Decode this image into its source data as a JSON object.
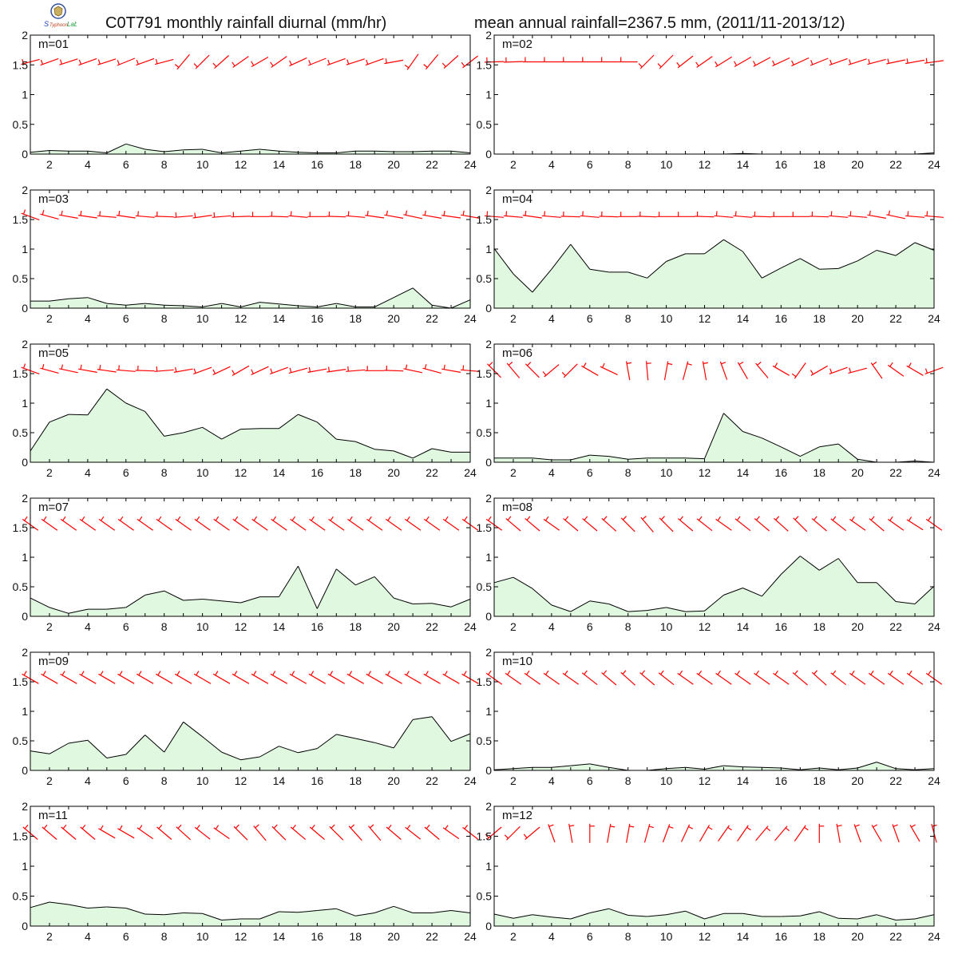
{
  "header": {
    "title_left": "C0T791 monthly rainfall diurnal (mm/hr)",
    "title_right": "mean annual rainfall=2367.5 mm, (2011/11-2013/12)",
    "logo_text": "Lab"
  },
  "colors": {
    "fill": "#e0f8e0",
    "line": "#000000",
    "barb": "#ff0000",
    "axis": "#000000"
  },
  "chart_data": [
    {
      "type": "area",
      "label": "m=01",
      "x": [
        1,
        2,
        3,
        4,
        5,
        6,
        7,
        8,
        9,
        10,
        11,
        12,
        13,
        14,
        15,
        16,
        17,
        18,
        19,
        20,
        21,
        22,
        23,
        24
      ],
      "values": [
        0.03,
        0.06,
        0.05,
        0.05,
        0.02,
        0.17,
        0.08,
        0.04,
        0.07,
        0.08,
        0.02,
        0.05,
        0.08,
        0.05,
        0.03,
        0.02,
        0.02,
        0.05,
        0.05,
        0.04,
        0.04,
        0.05,
        0.05,
        0.02
      ],
      "wind_dir": [
        255,
        250,
        252,
        250,
        252,
        248,
        250,
        255,
        220,
        225,
        228,
        235,
        240,
        235,
        245,
        248,
        250,
        252,
        250,
        260,
        215,
        220,
        228,
        232
      ],
      "ylim": [
        0,
        2
      ],
      "xlim": [
        1,
        24
      ]
    },
    {
      "type": "area",
      "label": "m=02",
      "x": [
        1,
        2,
        3,
        4,
        5,
        6,
        7,
        8,
        9,
        10,
        11,
        12,
        13,
        14,
        15,
        16,
        17,
        18,
        19,
        20,
        21,
        22,
        23,
        24
      ],
      "values": [
        0,
        0,
        0,
        0,
        0,
        0,
        0,
        0,
        0,
        0,
        0,
        0,
        0,
        0.01,
        0,
        0,
        0,
        0,
        0,
        0,
        0,
        0,
        0,
        0.02
      ],
      "wind_dir": [
        268,
        268,
        270,
        270,
        270,
        270,
        270,
        270,
        225,
        225,
        232,
        235,
        238,
        240,
        242,
        245,
        245,
        248,
        250,
        252,
        255,
        258,
        260,
        262
      ],
      "ylim": [
        0,
        2
      ],
      "xlim": [
        1,
        24
      ]
    },
    {
      "type": "area",
      "label": "m=03",
      "x": [
        1,
        2,
        3,
        4,
        5,
        6,
        7,
        8,
        9,
        10,
        11,
        12,
        13,
        14,
        15,
        16,
        17,
        18,
        19,
        20,
        21,
        22,
        23,
        24
      ],
      "values": [
        0.12,
        0.12,
        0.16,
        0.18,
        0.08,
        0.05,
        0.08,
        0.05,
        0.04,
        0.02,
        0.08,
        0.02,
        0.1,
        0.07,
        0.04,
        0.02,
        0.08,
        0.02,
        0.02,
        0.18,
        0.34,
        0.05,
        0.0,
        0.14
      ],
      "wind_dir": [
        290,
        285,
        280,
        278,
        275,
        278,
        275,
        272,
        265,
        262,
        265,
        268,
        270,
        272,
        275,
        270,
        272,
        275,
        278,
        280,
        282,
        280,
        278,
        280
      ],
      "ylim": [
        0,
        2
      ],
      "xlim": [
        1,
        24
      ]
    },
    {
      "type": "area",
      "label": "m=04",
      "x": [
        1,
        2,
        3,
        4,
        5,
        6,
        7,
        8,
        9,
        10,
        11,
        12,
        13,
        14,
        15,
        16,
        17,
        18,
        19,
        20,
        21,
        22,
        23,
        24
      ],
      "values": [
        1.01,
        0.58,
        0.27,
        0.66,
        1.08,
        0.66,
        0.61,
        0.61,
        0.51,
        0.79,
        0.92,
        0.92,
        1.16,
        0.96,
        0.51,
        0.68,
        0.84,
        0.66,
        0.67,
        0.8,
        0.98,
        0.89,
        1.11,
        0.98
      ],
      "wind_dir": [
        275,
        275,
        278,
        275,
        272,
        275,
        272,
        270,
        272,
        270,
        270,
        272,
        275,
        275,
        272,
        270,
        270,
        272,
        275,
        275,
        280,
        282,
        275,
        275
      ],
      "ylim": [
        0,
        2
      ],
      "xlim": [
        1,
        24
      ]
    },
    {
      "type": "area",
      "label": "m=05",
      "x": [
        1,
        2,
        3,
        4,
        5,
        6,
        7,
        8,
        9,
        10,
        11,
        12,
        13,
        14,
        15,
        16,
        17,
        18,
        19,
        20,
        21,
        22,
        23,
        24
      ],
      "values": [
        0.19,
        0.68,
        0.81,
        0.8,
        1.24,
        1.0,
        0.86,
        0.44,
        0.5,
        0.59,
        0.39,
        0.56,
        0.57,
        0.57,
        0.81,
        0.68,
        0.39,
        0.35,
        0.22,
        0.19,
        0.07,
        0.23,
        0.17,
        0.17
      ],
      "wind_dir": [
        290,
        285,
        282,
        280,
        278,
        275,
        272,
        265,
        260,
        250,
        245,
        240,
        245,
        250,
        255,
        260,
        262,
        265,
        270,
        272,
        282,
        285,
        280,
        275
      ],
      "ylim": [
        0,
        2
      ],
      "xlim": [
        1,
        24
      ]
    },
    {
      "type": "area",
      "label": "m=06",
      "x": [
        1,
        2,
        3,
        4,
        5,
        6,
        7,
        8,
        9,
        10,
        11,
        12,
        13,
        14,
        15,
        16,
        17,
        18,
        19,
        20,
        21,
        22,
        23,
        24
      ],
      "values": [
        0.07,
        0.07,
        0.07,
        0.04,
        0.04,
        0.12,
        0.1,
        0.05,
        0.07,
        0.07,
        0.07,
        0.06,
        0.83,
        0.52,
        0.41,
        0.26,
        0.1,
        0.26,
        0.31,
        0.05,
        0.0,
        0.0,
        0.02,
        0.0
      ],
      "wind_dir": [
        315,
        320,
        315,
        230,
        225,
        300,
        295,
        350,
        355,
        10,
        15,
        350,
        340,
        330,
        320,
        300,
        215,
        240,
        250,
        255,
        325,
        305,
        300,
        250
      ],
      "ylim": [
        0,
        2
      ],
      "xlim": [
        1,
        24
      ]
    },
    {
      "type": "area",
      "label": "m=07",
      "x": [
        1,
        2,
        3,
        4,
        5,
        6,
        7,
        8,
        9,
        10,
        11,
        12,
        13,
        14,
        15,
        16,
        17,
        18,
        19,
        20,
        21,
        22,
        23,
        24
      ],
      "values": [
        0.31,
        0.15,
        0.05,
        0.12,
        0.12,
        0.15,
        0.36,
        0.43,
        0.27,
        0.29,
        0.26,
        0.23,
        0.33,
        0.33,
        0.85,
        0.13,
        0.8,
        0.53,
        0.67,
        0.31,
        0.21,
        0.22,
        0.16,
        0.29
      ],
      "wind_dir": [
        305,
        305,
        305,
        305,
        305,
        305,
        305,
        305,
        305,
        305,
        305,
        305,
        305,
        305,
        305,
        305,
        305,
        305,
        305,
        305,
        305,
        305,
        305,
        305
      ],
      "ylim": [
        0,
        2
      ],
      "xlim": [
        1,
        24
      ]
    },
    {
      "type": "area",
      "label": "m=08",
      "x": [
        1,
        2,
        3,
        4,
        5,
        6,
        7,
        8,
        9,
        10,
        11,
        12,
        13,
        14,
        15,
        16,
        17,
        18,
        19,
        20,
        21,
        22,
        23,
        24
      ],
      "values": [
        0.57,
        0.66,
        0.47,
        0.19,
        0.08,
        0.26,
        0.21,
        0.08,
        0.1,
        0.15,
        0.08,
        0.09,
        0.36,
        0.48,
        0.34,
        0.71,
        1.02,
        0.78,
        0.98,
        0.57,
        0.57,
        0.25,
        0.21,
        0.51
      ],
      "wind_dir": [
        305,
        310,
        310,
        305,
        310,
        310,
        312,
        315,
        320,
        315,
        310,
        308,
        305,
        308,
        310,
        312,
        315,
        310,
        308,
        305,
        310,
        305,
        302,
        305
      ],
      "ylim": [
        0,
        2
      ],
      "xlim": [
        1,
        24
      ]
    },
    {
      "type": "area",
      "label": "m=09",
      "x": [
        1,
        2,
        3,
        4,
        5,
        6,
        7,
        8,
        9,
        10,
        11,
        12,
        13,
        14,
        15,
        16,
        17,
        18,
        19,
        20,
        21,
        22,
        23,
        24
      ],
      "values": [
        0.33,
        0.28,
        0.46,
        0.51,
        0.21,
        0.27,
        0.6,
        0.31,
        0.82,
        0.57,
        0.31,
        0.18,
        0.23,
        0.41,
        0.3,
        0.37,
        0.61,
        0.54,
        0.47,
        0.38,
        0.86,
        0.91,
        0.49,
        0.62
      ],
      "wind_dir": [
        300,
        300,
        300,
        300,
        300,
        300,
        300,
        300,
        300,
        300,
        300,
        300,
        300,
        300,
        300,
        300,
        300,
        300,
        300,
        300,
        300,
        300,
        300,
        300
      ],
      "ylim": [
        0,
        2
      ],
      "xlim": [
        1,
        24
      ]
    },
    {
      "type": "area",
      "label": "m=10",
      "x": [
        1,
        2,
        3,
        4,
        5,
        6,
        7,
        8,
        9,
        10,
        11,
        12,
        13,
        14,
        15,
        16,
        17,
        18,
        19,
        20,
        21,
        22,
        23,
        24
      ],
      "values": [
        0.01,
        0.03,
        0.05,
        0.05,
        0.08,
        0.11,
        0.05,
        0.0,
        0.0,
        0.03,
        0.05,
        0.02,
        0.08,
        0.06,
        0.05,
        0.04,
        0.01,
        0.04,
        0.01,
        0.04,
        0.14,
        0.03,
        0.01,
        0.03
      ],
      "wind_dir": [
        305,
        305,
        305,
        305,
        305,
        308,
        310,
        312,
        310,
        308,
        305,
        305,
        305,
        305,
        305,
        305,
        310,
        312,
        308,
        305,
        305,
        305,
        305,
        305
      ],
      "ylim": [
        0,
        2
      ],
      "xlim": [
        1,
        24
      ]
    },
    {
      "type": "area",
      "label": "m=11",
      "x": [
        1,
        2,
        3,
        4,
        5,
        6,
        7,
        8,
        9,
        10,
        11,
        12,
        13,
        14,
        15,
        16,
        17,
        18,
        19,
        20,
        21,
        22,
        23,
        24
      ],
      "values": [
        0.31,
        0.4,
        0.36,
        0.3,
        0.32,
        0.3,
        0.2,
        0.19,
        0.22,
        0.21,
        0.1,
        0.12,
        0.12,
        0.24,
        0.23,
        0.26,
        0.29,
        0.17,
        0.22,
        0.33,
        0.22,
        0.22,
        0.26,
        0.22
      ],
      "wind_dir": [
        310,
        310,
        310,
        310,
        300,
        300,
        305,
        310,
        312,
        308,
        305,
        315,
        320,
        315,
        310,
        310,
        315,
        318,
        320,
        310,
        308,
        310,
        305,
        308
      ],
      "ylim": [
        0,
        2
      ],
      "xlim": [
        1,
        24
      ]
    },
    {
      "type": "area",
      "label": "m=12",
      "x": [
        1,
        2,
        3,
        4,
        5,
        6,
        7,
        8,
        9,
        10,
        11,
        12,
        13,
        14,
        15,
        16,
        17,
        18,
        19,
        20,
        21,
        22,
        23,
        24
      ],
      "values": [
        0.2,
        0.13,
        0.19,
        0.15,
        0.12,
        0.22,
        0.29,
        0.18,
        0.16,
        0.19,
        0.25,
        0.12,
        0.21,
        0.21,
        0.16,
        0.16,
        0.17,
        0.24,
        0.13,
        0.12,
        0.19,
        0.1,
        0.12,
        0.19
      ],
      "wind_dir": [
        230,
        225,
        230,
        340,
        350,
        0,
        10,
        10,
        15,
        20,
        25,
        30,
        35,
        35,
        40,
        40,
        35,
        0,
        350,
        340,
        330,
        340,
        330,
        345
      ],
      "ylim": [
        0,
        2
      ],
      "xlim": [
        1,
        24
      ]
    }
  ]
}
